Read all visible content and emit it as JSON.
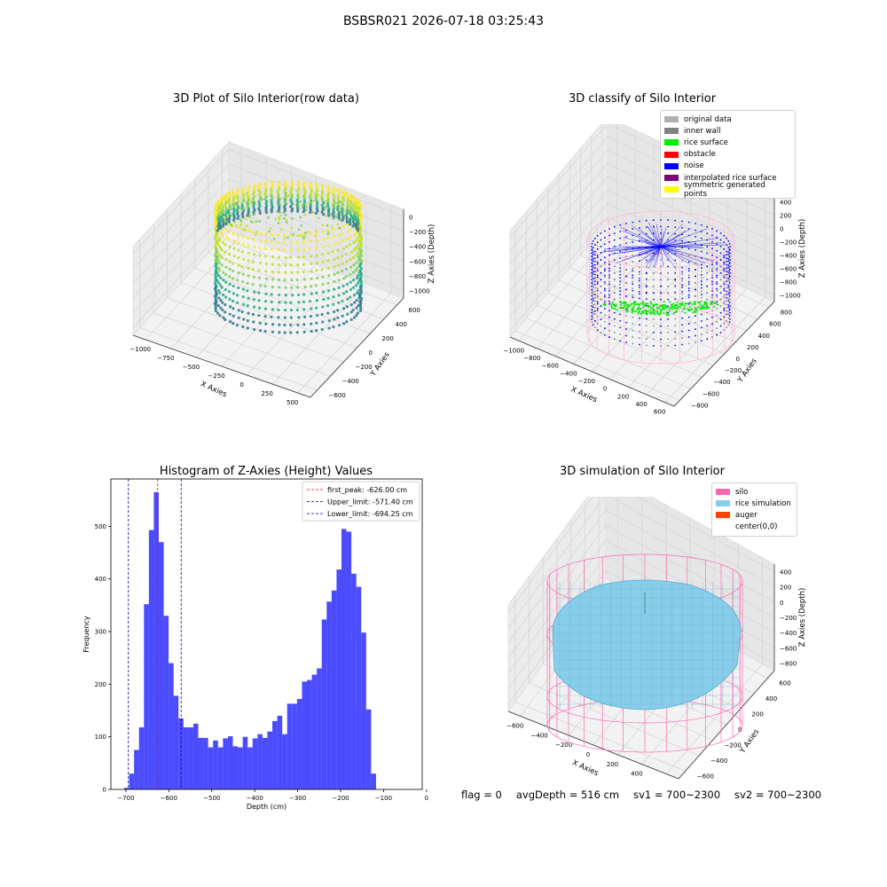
{
  "suptitle": "BSBSR021 2026-07-18 03:25:43",
  "panels": {
    "raw": {
      "title": "3D Plot of Silo Interior(row data)",
      "xlabel": "X Axies",
      "ylabel": "Y Axies",
      "zlabel": "Z Axies (Depth)",
      "xticks": [
        "−1000",
        "−750",
        "−500",
        "−250",
        "0",
        "250",
        "500"
      ],
      "yticks": [
        "600",
        "400",
        "200",
        "0",
        "−200",
        "−400",
        "−600"
      ],
      "zticks": [
        "0",
        "−200",
        "−400",
        "−600",
        "−800",
        "−1000"
      ]
    },
    "classify": {
      "title": "3D classify of Silo Interior",
      "xlabel": "X Axies",
      "ylabel": "Y Axies",
      "zlabel": "Z Axies (Depth)",
      "xticks": [
        "−1000",
        "−800",
        "−600",
        "−400",
        "−200",
        "0",
        "200",
        "400",
        "600"
      ],
      "yticks": [
        "800",
        "600",
        "400",
        "200",
        "0",
        "−200",
        "−400",
        "−600",
        "−800"
      ],
      "zticks": [
        "400",
        "200",
        "0",
        "−200",
        "−400",
        "−600",
        "−800",
        "−1000"
      ],
      "legend": [
        {
          "label": "original data",
          "color": "#b0b0b0"
        },
        {
          "label": "inner wall",
          "color": "#808080"
        },
        {
          "label": "rice surface",
          "color": "#00ee00"
        },
        {
          "label": "obstacle",
          "color": "#ff0000"
        },
        {
          "label": "noise",
          "color": "#0000ff"
        },
        {
          "label": "interpolated rice surface",
          "color": "#800080"
        },
        {
          "label": "symmetric generated points",
          "color": "#ffff00"
        }
      ]
    },
    "simulation": {
      "title": "3D simulation of Silo Interior",
      "xlabel": "X Axies",
      "ylabel": "Y Axies",
      "zlabel": "Z Axies (Depth)",
      "xticks": [
        "−600",
        "−400",
        "−200",
        "0",
        "200",
        "400",
        "600"
      ],
      "yticks": [
        "600",
        "400",
        "200",
        "0",
        "−200",
        "−400",
        "−600"
      ],
      "zticks": [
        "400",
        "200",
        "0",
        "−200",
        "−400",
        "−600",
        "−800"
      ],
      "legend": [
        {
          "label": "silo",
          "color": "#ff69b4"
        },
        {
          "label": "rice simulation",
          "color": "#87ceeb"
        },
        {
          "label": "auger",
          "color": "#ff4500"
        },
        {
          "label": "center(0,0)",
          "color": "#ffffff"
        }
      ]
    }
  },
  "chart_data": {
    "type": "bar",
    "title": "Histogram of Z-Axies (Height) Values",
    "xlabel": "Depth (cm)",
    "ylabel": "Frequency",
    "xlim": [
      -735,
      -10
    ],
    "ylim": [
      0,
      590
    ],
    "xticks": [
      -700,
      -600,
      -500,
      -400,
      -300,
      -200,
      -100,
      0
    ],
    "yticks": [
      0,
      100,
      200,
      300,
      400,
      500
    ],
    "bin_width": 11.5,
    "bins_start": -704,
    "values": [
      3,
      30,
      75,
      118,
      352,
      493,
      565,
      470,
      330,
      240,
      178,
      135,
      118,
      118,
      125,
      98,
      98,
      80,
      93,
      80,
      97,
      101,
      82,
      80,
      100,
      80,
      97,
      105,
      98,
      110,
      130,
      140,
      105,
      163,
      163,
      172,
      205,
      208,
      218,
      230,
      323,
      357,
      378,
      418,
      495,
      490,
      410,
      385,
      298,
      152,
      30
    ],
    "bar_color": "#0000ff",
    "legend": [
      {
        "label": "first_peak: -626.00 cm",
        "value": -626.0,
        "color": "#ff0000"
      },
      {
        "label": "Upper_limit: -571.40 cm",
        "value": -571.4,
        "color": "#0000aa"
      },
      {
        "label": "Lower_limit: -694.25 cm",
        "value": -694.25,
        "color": "#0000aa"
      }
    ],
    "legend_position": "upper-right"
  },
  "footer": {
    "flag": "flag = 0",
    "avg_depth": "avgDepth = 516 cm",
    "sv1": "sv1 = 700~2300",
    "sv2": "sv2 = 700~2300"
  }
}
